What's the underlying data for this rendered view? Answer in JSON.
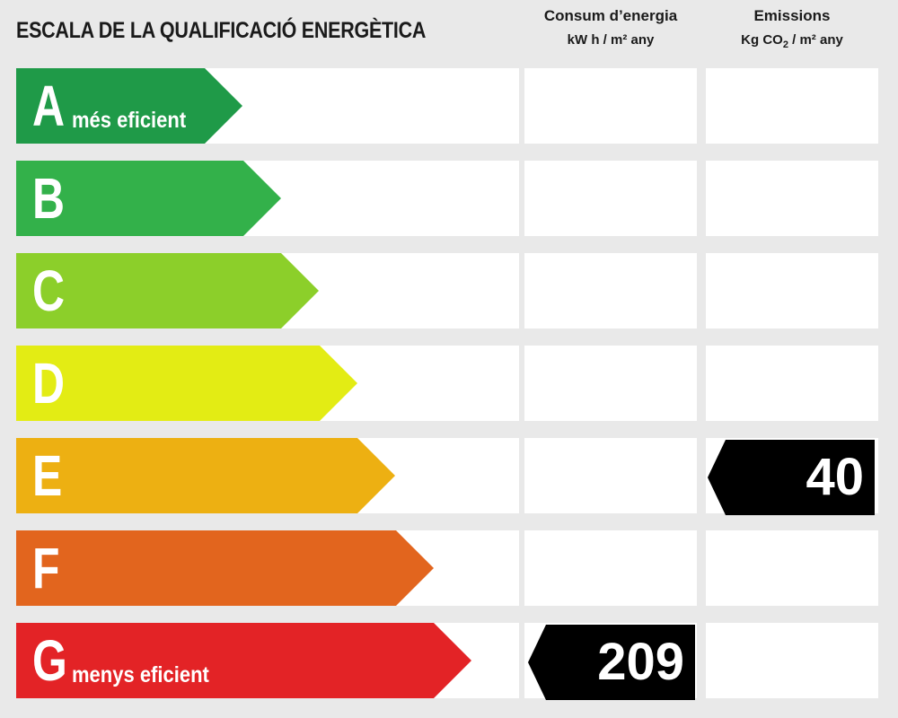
{
  "header": {
    "title": "ESCALA DE LA QUALIFICACIÓ ENERGÈTICA",
    "energy_title": "Consum d’energia",
    "energy_unit": "kW h / m² any",
    "emissions_title": "Emissions",
    "emissions_unit_prefix": "Kg CO",
    "emissions_unit_sub": "2",
    "emissions_unit_suffix": " / m² any"
  },
  "ratings": [
    {
      "letter": "A",
      "sub": "més eficient",
      "color": "#1f9a48"
    },
    {
      "letter": "B",
      "sub": "",
      "color": "#33b14a"
    },
    {
      "letter": "C",
      "sub": "",
      "color": "#8ccf2a"
    },
    {
      "letter": "D",
      "sub": "",
      "color": "#e3ec14"
    },
    {
      "letter": "E",
      "sub": "",
      "color": "#edb012"
    },
    {
      "letter": "F",
      "sub": "",
      "color": "#e2651e"
    },
    {
      "letter": "G",
      "sub": "menys eficient",
      "color": "#e32326"
    }
  ],
  "results": {
    "energy": {
      "rating": "G",
      "value": "209"
    },
    "emissions": {
      "rating": "E",
      "value": "40"
    }
  }
}
